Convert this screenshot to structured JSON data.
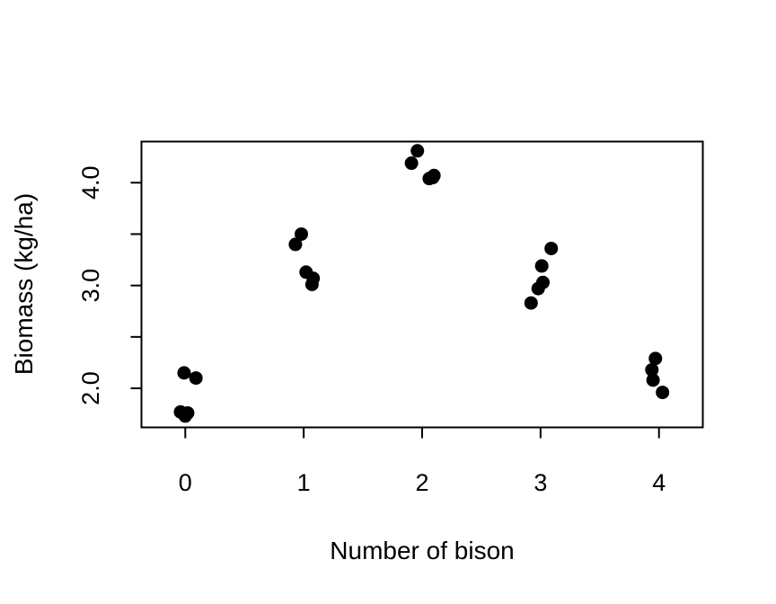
{
  "chart_data": {
    "type": "scatter",
    "title": "",
    "xlabel": "Number of bison",
    "ylabel": "Biomass (kg/ha)",
    "xlim": [
      -0.37,
      4.37
    ],
    "ylim": [
      1.62,
      4.4
    ],
    "x_ticks": [
      0,
      1,
      2,
      3,
      4
    ],
    "x_tick_labels": [
      "0",
      "1",
      "2",
      "3",
      "4"
    ],
    "y_ticks": [
      2.0,
      2.5,
      3.0,
      3.5,
      4.0
    ],
    "y_tick_labels": [
      "2.0",
      "",
      "3.0",
      "",
      "4.0"
    ],
    "grid": false,
    "marker_color": "#000000",
    "points": [
      {
        "x": -0.01,
        "y": 2.15
      },
      {
        "x": 0.09,
        "y": 2.1
      },
      {
        "x": -0.04,
        "y": 1.77
      },
      {
        "x": 0.02,
        "y": 1.76
      },
      {
        "x": 0.0,
        "y": 1.73
      },
      {
        "x": 0.93,
        "y": 3.4
      },
      {
        "x": 0.98,
        "y": 3.5
      },
      {
        "x": 1.02,
        "y": 3.13
      },
      {
        "x": 1.08,
        "y": 3.07
      },
      {
        "x": 1.07,
        "y": 3.01
      },
      {
        "x": 1.91,
        "y": 4.19
      },
      {
        "x": 1.96,
        "y": 4.31
      },
      {
        "x": 2.06,
        "y": 4.04
      },
      {
        "x": 2.1,
        "y": 4.07
      },
      {
        "x": 2.09,
        "y": 4.05
      },
      {
        "x": 2.92,
        "y": 2.83
      },
      {
        "x": 2.98,
        "y": 2.97
      },
      {
        "x": 3.02,
        "y": 3.03
      },
      {
        "x": 3.01,
        "y": 3.19
      },
      {
        "x": 3.09,
        "y": 3.36
      },
      {
        "x": 3.94,
        "y": 2.18
      },
      {
        "x": 3.97,
        "y": 2.29
      },
      {
        "x": 3.95,
        "y": 2.08
      },
      {
        "x": 4.03,
        "y": 1.96
      }
    ]
  }
}
